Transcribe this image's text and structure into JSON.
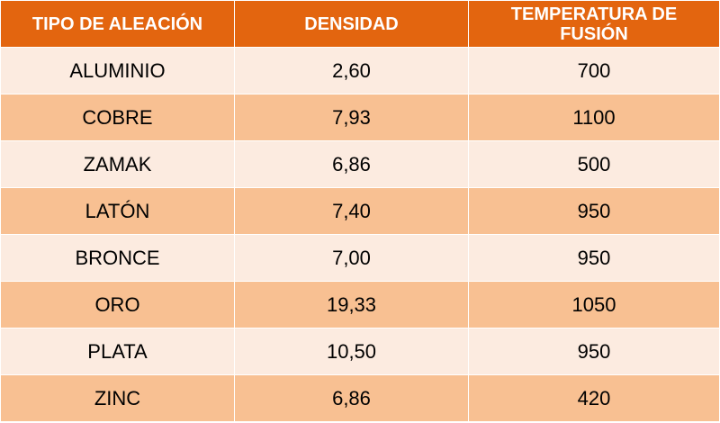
{
  "table": {
    "headers": [
      "TIPO DE ALEACIÓN",
      "DENSIDAD",
      "TEMPERATURA DE FUSIÓN"
    ],
    "rows": [
      [
        "ALUMINIO",
        "2,60",
        "700"
      ],
      [
        "COBRE",
        "7,93",
        "1100"
      ],
      [
        "ZAMAK",
        "6,86",
        "500"
      ],
      [
        "LATÓN",
        "7,40",
        "950"
      ],
      [
        "BRONCE",
        "7,00",
        "950"
      ],
      [
        "ORO",
        "19,33",
        "1050"
      ],
      [
        "PLATA",
        "10,50",
        "950"
      ],
      [
        "ZINC",
        "6,86",
        "420"
      ]
    ]
  },
  "colors": {
    "header_bg": "#e3650f",
    "header_text": "#ffffff",
    "row_light": "#fcebe0",
    "row_dark": "#f8c092"
  }
}
